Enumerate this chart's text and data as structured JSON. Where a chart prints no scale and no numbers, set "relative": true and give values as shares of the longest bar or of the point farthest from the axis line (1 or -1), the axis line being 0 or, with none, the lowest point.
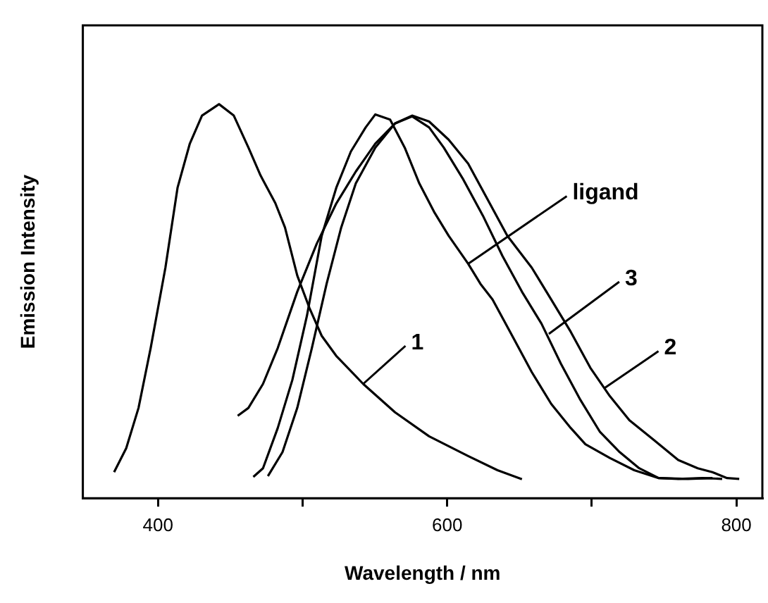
{
  "chart_data": {
    "type": "line",
    "xlabel": "Wavelength / nm",
    "ylabel": "Emission Intensity",
    "relative": true,
    "xlim": [
      348,
      818
    ],
    "xticks": [
      400,
      {
        "value": 500,
        "label": null
      },
      600,
      {
        "value": 700,
        "label": null
      },
      800
    ],
    "grid": false,
    "legend": false,
    "marker": "none",
    "line_style": "solid",
    "annotations": [
      {
        "text": "1",
        "x": 541.9,
        "y": 0.29
      },
      {
        "text": "2",
        "x": 709.1,
        "y": 0.28
      },
      {
        "text": "3",
        "x": 670.3,
        "y": 0.417
      },
      {
        "text": "ligand",
        "x": 614.5,
        "y": 0.595
      }
    ],
    "series": [
      {
        "color": "#000000",
        "x": [
          369.6,
          378.0,
          386.5,
          394.9,
          405.1,
          413.5,
          422.0,
          430.4,
          442.2,
          452.4,
          462.5,
          470.9,
          481.1,
          487.8,
          496.3,
          504.7,
          513.2,
          523.3,
          541.9,
          563.9,
          587.5,
          614.5,
          634.8,
          651.7
        ],
        "values": [
          0.066,
          0.127,
          0.229,
          0.381,
          0.585,
          0.788,
          0.9,
          0.971,
          1.0,
          0.971,
          0.89,
          0.819,
          0.749,
          0.687,
          0.565,
          0.483,
          0.412,
          0.361,
          0.29,
          0.218,
          0.157,
          0.107,
          0.071,
          0.048
        ]
      },
      {
        "color": "#000000",
        "x": [
          476.0,
          486.1,
          496.3,
          506.4,
          516.6,
          526.7,
          536.8,
          550.3,
          563.9,
          575.7,
          587.5,
          601.0,
          614.5,
          628.0,
          641.6,
          658.5,
          672.0,
          685.5,
          699.0,
          712.5,
          726.0,
          742.9,
          759.8,
          773.3,
          783.4,
          793.6,
          802.0
        ],
        "values": [
          0.056,
          0.117,
          0.229,
          0.381,
          0.544,
          0.687,
          0.799,
          0.89,
          0.951,
          0.971,
          0.956,
          0.91,
          0.849,
          0.758,
          0.666,
          0.585,
          0.504,
          0.422,
          0.331,
          0.259,
          0.198,
          0.148,
          0.097,
          0.076,
          0.066,
          0.051,
          0.049
        ]
      },
      {
        "color": "#000000",
        "x": [
          455.1,
          462.5,
          472.6,
          482.8,
          496.3,
          509.8,
          523.3,
          536.8,
          550.3,
          563.9,
          575.7,
          587.5,
          597.6,
          611.1,
          624.7,
          638.2,
          651.7,
          665.2,
          678.7,
          692.2,
          705.7,
          719.3,
          732.8,
          746.3,
          759.8,
          776.7,
          790.2
        ],
        "values": [
          0.209,
          0.229,
          0.29,
          0.381,
          0.524,
          0.646,
          0.748,
          0.829,
          0.9,
          0.951,
          0.969,
          0.941,
          0.89,
          0.809,
          0.717,
          0.615,
          0.524,
          0.443,
          0.341,
          0.249,
          0.168,
          0.117,
          0.076,
          0.051,
          0.049,
          0.051,
          0.049
        ]
      },
      {
        "color": "#000000",
        "x": [
          465.9,
          472.6,
          482.8,
          492.9,
          503.0,
          513.2,
          523.3,
          533.4,
          543.6,
          550.3,
          560.5,
          570.6,
          580.7,
          590.9,
          601.0,
          614.5,
          623.0,
          631.4,
          645.0,
          658.5,
          672.0,
          685.5,
          695.6,
          712.5,
          729.4,
          746.3,
          766.6,
          783.5
        ],
        "values": [
          0.054,
          0.076,
          0.178,
          0.3,
          0.463,
          0.666,
          0.788,
          0.88,
          0.941,
          0.974,
          0.961,
          0.89,
          0.799,
          0.727,
          0.666,
          0.595,
          0.544,
          0.504,
          0.412,
          0.32,
          0.239,
          0.178,
          0.137,
          0.102,
          0.071,
          0.051,
          0.049,
          0.051
        ]
      }
    ]
  }
}
